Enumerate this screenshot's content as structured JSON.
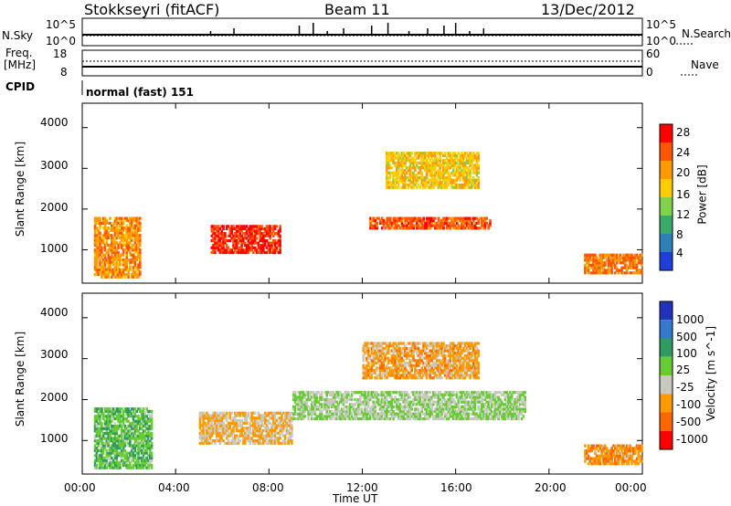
{
  "header": {
    "station": "Stokkseyri (fitACF)",
    "beam": "Beam 11",
    "date": "13/Dec/2012"
  },
  "noise_panel": {
    "left_label": "N.Sky",
    "right_label": "N.Search",
    "left_ticks": [
      "10^5",
      "10^0"
    ],
    "right_ticks": [
      "10^5",
      "10^0"
    ]
  },
  "freq_panel": {
    "left_label_line1": "Freq.",
    "left_label_line2": "[MHz]",
    "right_label": "Nave",
    "left_ticks": [
      "18",
      "8"
    ],
    "right_ticks": [
      "60",
      "0"
    ]
  },
  "cpid": {
    "label": "CPID",
    "mode": "normal (fast) 151"
  },
  "power_panel": {
    "ylabel": "Slant Range [km]",
    "colorbar_label": "Power [dB]",
    "y_ticks": [
      "4000",
      "3000",
      "2000",
      "1000"
    ],
    "colorbar_ticks": [
      "28",
      "24",
      "20",
      "16",
      "12",
      "8",
      "4"
    ],
    "colors": [
      "#ff0000",
      "#ff5500",
      "#ff9900",
      "#ffcc00",
      "#7fd24a",
      "#3aaa6a",
      "#2e7fb8",
      "#1d3fd8"
    ]
  },
  "velocity_panel": {
    "ylabel": "Slant Range [km]",
    "colorbar_label": "Velocity [m s^-1]",
    "y_ticks": [
      "4000",
      "3000",
      "2000",
      "1000"
    ],
    "colorbar_ticks": [
      "1000",
      "500",
      "100",
      "25",
      "-25",
      "-100",
      "-500",
      "-1000"
    ],
    "colors": [
      "#2233bb",
      "#337acc",
      "#2f9a62",
      "#66cc33",
      "#c8c8c0",
      "#ff9900",
      "#ff6600",
      "#ff0000"
    ]
  },
  "time_axis": {
    "xlabel": "Time UT",
    "ticks": [
      "00:00",
      "04:00",
      "08:00",
      "12:00",
      "16:00",
      "20:00",
      "00:00"
    ]
  },
  "chart_data": [
    {
      "type": "heatmap",
      "quantity": "Power",
      "x_range_hours": [
        0,
        24
      ],
      "y_range_km": [
        180,
        4600
      ],
      "color_scale": [
        0,
        30
      ],
      "features": [
        {
          "t_start": 0.5,
          "t_end": 2.5,
          "range_start": 300,
          "range_end": 1800,
          "value": 22
        },
        {
          "t_start": 5.5,
          "t_end": 8.5,
          "range_start": 900,
          "range_end": 1600,
          "value": 28
        },
        {
          "t_start": 12.3,
          "t_end": 17.5,
          "range_start": 1500,
          "range_end": 1800,
          "value": 26
        },
        {
          "t_start": 13.0,
          "t_end": 17.0,
          "range_start": 2500,
          "range_end": 3400,
          "value": 18
        },
        {
          "t_start": 21.5,
          "t_end": 24.0,
          "range_start": 400,
          "range_end": 900,
          "value": 24
        }
      ]
    },
    {
      "type": "heatmap",
      "quantity": "Velocity",
      "x_range_hours": [
        0,
        24
      ],
      "y_range_km": [
        180,
        4600
      ],
      "color_scale": [
        -1000,
        1000
      ],
      "features": [
        {
          "t_start": 0.5,
          "t_end": 3.0,
          "range_start": 300,
          "range_end": 1800,
          "value": 200
        },
        {
          "t_start": 5.0,
          "t_end": 9.0,
          "range_start": 900,
          "range_end": 1700,
          "value": -300
        },
        {
          "t_start": 9.0,
          "t_end": 19.0,
          "range_start": 1500,
          "range_end": 2200,
          "value": 0
        },
        {
          "t_start": 12.0,
          "t_end": 17.0,
          "range_start": 2500,
          "range_end": 3400,
          "value": -400
        },
        {
          "t_start": 21.5,
          "t_end": 24.0,
          "range_start": 400,
          "range_end": 900,
          "value": -500
        }
      ]
    }
  ]
}
